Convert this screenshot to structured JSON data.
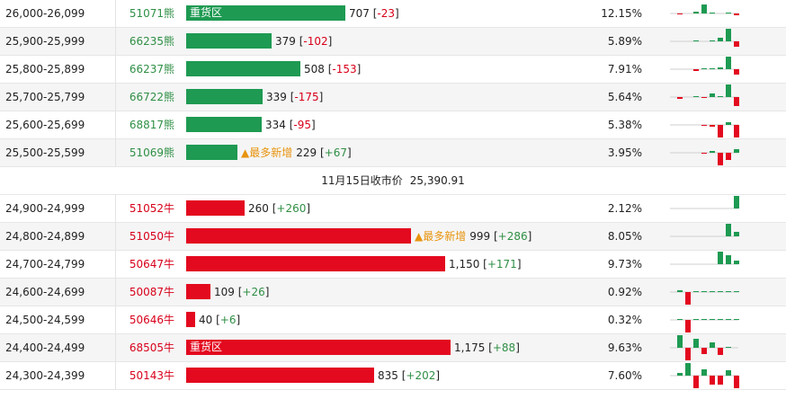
{
  "colors": {
    "bear": "#1e9a52",
    "bull": "#e3091f",
    "tag": "#e8940e"
  },
  "rows": [
    {
      "range": "26,000-26,099",
      "code": "51071熊",
      "side": "bear",
      "oi": 707,
      "oi_text": "707",
      "chg_text": "-23",
      "chg_sign": "neg",
      "tag": "",
      "inbar": "重货区",
      "pct": "12.15%",
      "spark": [
        -1,
        0,
        2,
        10,
        1,
        0,
        1,
        -2
      ]
    },
    {
      "range": "25,900-25,999",
      "code": "66235熊",
      "side": "bear",
      "oi": 379,
      "oi_text": "379",
      "chg_text": "-102",
      "chg_sign": "neg",
      "tag": "",
      "inbar": "",
      "pct": "5.89%",
      "spark": [
        0,
        0,
        1,
        0,
        1,
        4,
        14,
        -6
      ]
    },
    {
      "range": "25,800-25,899",
      "code": "66237熊",
      "side": "bear",
      "oi": 508,
      "oi_text": "508",
      "chg_text": "-153",
      "chg_sign": "neg",
      "tag": "",
      "inbar": "",
      "pct": "7.91%",
      "spark": [
        0,
        0,
        -2,
        1,
        1,
        2,
        14,
        -6
      ]
    },
    {
      "range": "25,700-25,799",
      "code": "66722熊",
      "side": "bear",
      "oi": 339,
      "oi_text": "339",
      "chg_text": "-175",
      "chg_sign": "neg",
      "tag": "",
      "inbar": "",
      "pct": "5.64%",
      "spark": [
        -2,
        0,
        1,
        -1,
        4,
        1,
        14,
        -10
      ]
    },
    {
      "range": "25,600-25,699",
      "code": "68817熊",
      "side": "bear",
      "oi": 334,
      "oi_text": "334",
      "chg_text": "-95",
      "chg_sign": "neg",
      "tag": "",
      "inbar": "",
      "pct": "5.38%",
      "spark": [
        0,
        0,
        0,
        -1,
        -2,
        -14,
        3,
        -14
      ]
    },
    {
      "range": "25,500-25,599",
      "code": "51069熊",
      "side": "bear",
      "oi": 229,
      "oi_text": "229",
      "chg_text": "+67",
      "chg_sign": "pos",
      "tag": "▲最多新增",
      "inbar": "",
      "pct": "3.95%",
      "spark": [
        0,
        0,
        0,
        -1,
        2,
        -14,
        -8,
        4
      ]
    }
  ],
  "separator": {
    "label": "11月15日收市价",
    "value": "25,390.91"
  },
  "rows2": [
    {
      "range": "24,900-24,999",
      "code": "51052牛",
      "side": "bull",
      "oi": 260,
      "oi_text": "260",
      "chg_text": "+260",
      "chg_sign": "pos",
      "tag": "",
      "inbar": "",
      "pct": "2.12%",
      "spark": [
        0,
        0,
        0,
        0,
        0,
        0,
        0,
        14
      ]
    },
    {
      "range": "24,800-24,899",
      "code": "51050牛",
      "side": "bull",
      "oi": 999,
      "oi_text": "999",
      "chg_text": "+286",
      "chg_sign": "pos",
      "tag": "▲最多新增",
      "inbar": "",
      "pct": "8.05%",
      "spark": [
        0,
        0,
        0,
        0,
        0,
        0,
        14,
        5
      ]
    },
    {
      "range": "24,700-24,799",
      "code": "50647牛",
      "side": "bull",
      "oi": 1150,
      "oi_text": "1,150",
      "chg_text": "+171",
      "chg_sign": "pos",
      "tag": "",
      "inbar": "",
      "pct": "9.73%",
      "spark": [
        0,
        0,
        0,
        0,
        0,
        14,
        10,
        4
      ]
    },
    {
      "range": "24,600-24,699",
      "code": "50087牛",
      "side": "bull",
      "oi": 109,
      "oi_text": "109",
      "chg_text": "+26",
      "chg_sign": "pos",
      "tag": "",
      "inbar": "",
      "pct": "0.92%",
      "spark": [
        2,
        -14,
        1,
        1,
        1,
        1,
        1,
        1
      ]
    },
    {
      "range": "24,500-24,599",
      "code": "50646牛",
      "side": "bull",
      "oi": 40,
      "oi_text": "40",
      "chg_text": "+6",
      "chg_sign": "pos",
      "tag": "",
      "inbar": "",
      "pct": "0.32%",
      "spark": [
        1,
        -14,
        1,
        1,
        1,
        1,
        1,
        1
      ]
    },
    {
      "range": "24,400-24,499",
      "code": "68505牛",
      "side": "bull",
      "oi": 1175,
      "oi_text": "1,175",
      "chg_text": "+88",
      "chg_sign": "pos",
      "tag": "",
      "inbar": "重货区",
      "pct": "9.63%",
      "spark": [
        14,
        -14,
        10,
        -7,
        6,
        -8,
        1,
        0
      ]
    },
    {
      "range": "24,300-24,399",
      "code": "50143牛",
      "side": "bull",
      "oi": 835,
      "oi_text": "835",
      "chg_text": "+202",
      "chg_sign": "pos",
      "tag": "",
      "inbar": "",
      "pct": "7.60%",
      "spark": [
        3,
        14,
        -14,
        7,
        -10,
        -10,
        6,
        -14
      ]
    }
  ]
}
